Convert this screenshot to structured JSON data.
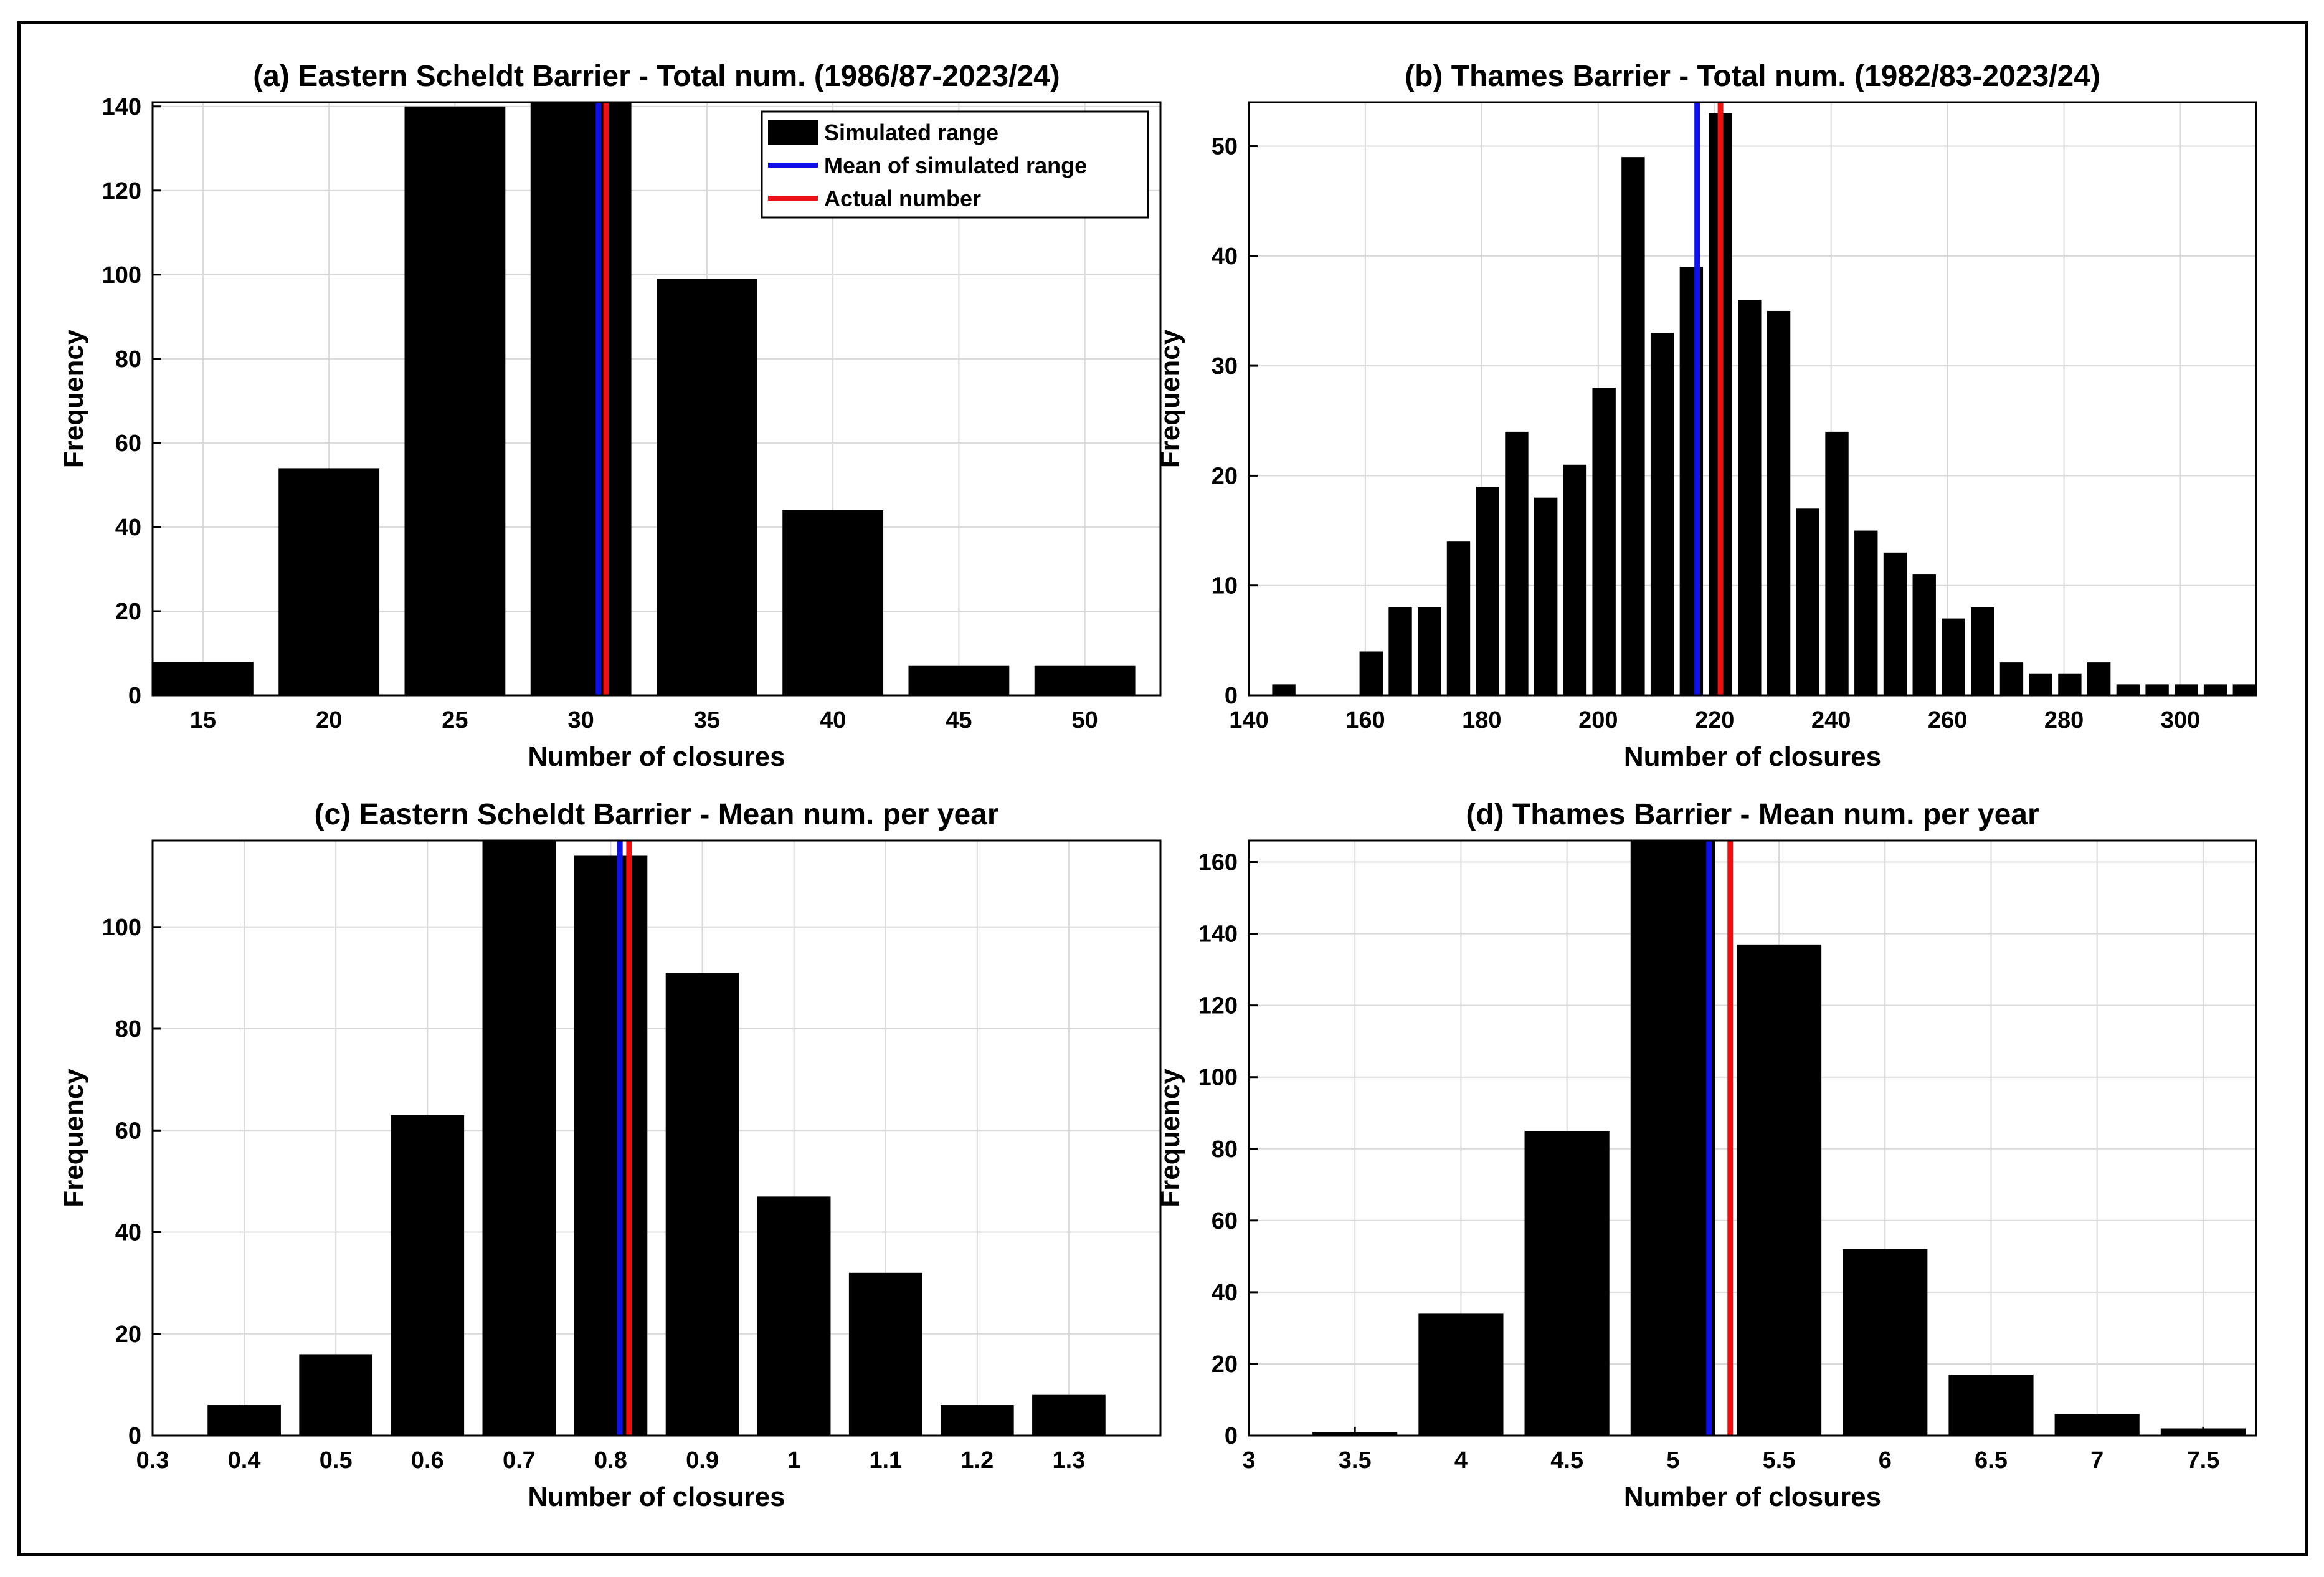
{
  "colors": {
    "bar": "#000000",
    "mean_line": "#1010e8",
    "actual_line": "#ee1111",
    "grid": "#d9d9d9",
    "axis": "#000000"
  },
  "legend": {
    "items": [
      {
        "label": "Simulated range",
        "kind": "bar"
      },
      {
        "label": "Mean of simulated range",
        "kind": "mean"
      },
      {
        "label": "Actual number",
        "kind": "actual"
      }
    ]
  },
  "chart_data": [
    {
      "id": "a",
      "type": "bar",
      "title": "(a) Eastern Scheldt Barrier - Total num. (1986/87-2023/24)",
      "xlabel": "Number of closures",
      "ylabel": "Frequency",
      "xlim": [
        13,
        53
      ],
      "ylim": [
        0,
        141
      ],
      "xticks": [
        15,
        20,
        25,
        30,
        35,
        40,
        45,
        50
      ],
      "yticks": [
        0,
        20,
        40,
        60,
        80,
        100,
        120,
        140
      ],
      "bin_width": 5,
      "bar_fraction": 0.8,
      "categories": [
        15,
        20,
        25,
        30,
        35,
        40,
        45,
        50
      ],
      "values": [
        8,
        54,
        140,
        141,
        99,
        44,
        7,
        7
      ],
      "mean_value": 30.7,
      "actual_value": 31,
      "legend": true,
      "grid": true
    },
    {
      "id": "b",
      "type": "bar",
      "title": "(b) Thames Barrier - Total num. (1982/83-2023/24)",
      "xlabel": "Number of closures",
      "ylabel": "Frequency",
      "xlim": [
        140,
        313
      ],
      "ylim": [
        0,
        54
      ],
      "xticks": [
        140,
        160,
        180,
        200,
        220,
        240,
        260,
        280,
        300
      ],
      "yticks": [
        0,
        10,
        20,
        30,
        40,
        50
      ],
      "bin_width": 5,
      "bar_fraction": 0.8,
      "categories": [
        146,
        151,
        156,
        161,
        166,
        171,
        176,
        181,
        186,
        191,
        196,
        201,
        206,
        211,
        216,
        221,
        226,
        231,
        236,
        241,
        246,
        251,
        256,
        261,
        266,
        271,
        276,
        281,
        286,
        291,
        296,
        301,
        306,
        311
      ],
      "values": [
        1,
        0,
        0,
        4,
        8,
        8,
        14,
        19,
        24,
        18,
        21,
        28,
        49,
        33,
        39,
        53,
        36,
        35,
        17,
        24,
        15,
        13,
        11,
        7,
        8,
        3,
        2,
        2,
        3,
        1,
        1,
        1,
        1,
        1
      ],
      "mean_value": 217,
      "actual_value": 221,
      "legend": false,
      "grid": true
    },
    {
      "id": "c",
      "type": "bar",
      "title": "(c) Eastern Scheldt Barrier - Mean num. per year",
      "xlabel": "Number of closures",
      "ylabel": "Frequency",
      "xlim": [
        0.3,
        1.4
      ],
      "ylim": [
        0,
        117
      ],
      "xticks": [
        0.3,
        0.4,
        0.5,
        0.6,
        0.7,
        0.8,
        0.9,
        1,
        1.1,
        1.2,
        1.3
      ],
      "yticks": [
        0,
        20,
        40,
        60,
        80,
        100
      ],
      "bin_width": 0.1,
      "bar_fraction": 0.8,
      "categories": [
        0.4,
        0.5,
        0.6,
        0.7,
        0.8,
        0.9,
        1.0,
        1.1,
        1.2,
        1.3
      ],
      "values": [
        6,
        16,
        63,
        117,
        114,
        91,
        47,
        32,
        6,
        8
      ],
      "mean_value": 0.81,
      "actual_value": 0.82,
      "legend": false,
      "grid": true
    },
    {
      "id": "d",
      "type": "bar",
      "title": "(d) Thames Barrier - Mean num. per year",
      "xlabel": "Number of closures",
      "ylabel": "Frequency",
      "xlim": [
        3,
        7.75
      ],
      "ylim": [
        0,
        166
      ],
      "xticks": [
        3,
        3.5,
        4,
        4.5,
        5,
        5.5,
        6,
        6.5,
        7,
        7.5
      ],
      "yticks": [
        0,
        20,
        40,
        60,
        80,
        100,
        120,
        140,
        160
      ],
      "bin_width": 0.5,
      "bar_fraction": 0.8,
      "categories": [
        3.5,
        4,
        4.5,
        5,
        5.5,
        6,
        6.5,
        7,
        7.5
      ],
      "values": [
        1,
        34,
        85,
        166,
        137,
        52,
        17,
        6,
        2
      ],
      "mean_value": 5.17,
      "actual_value": 5.27,
      "legend": false,
      "grid": true
    }
  ]
}
